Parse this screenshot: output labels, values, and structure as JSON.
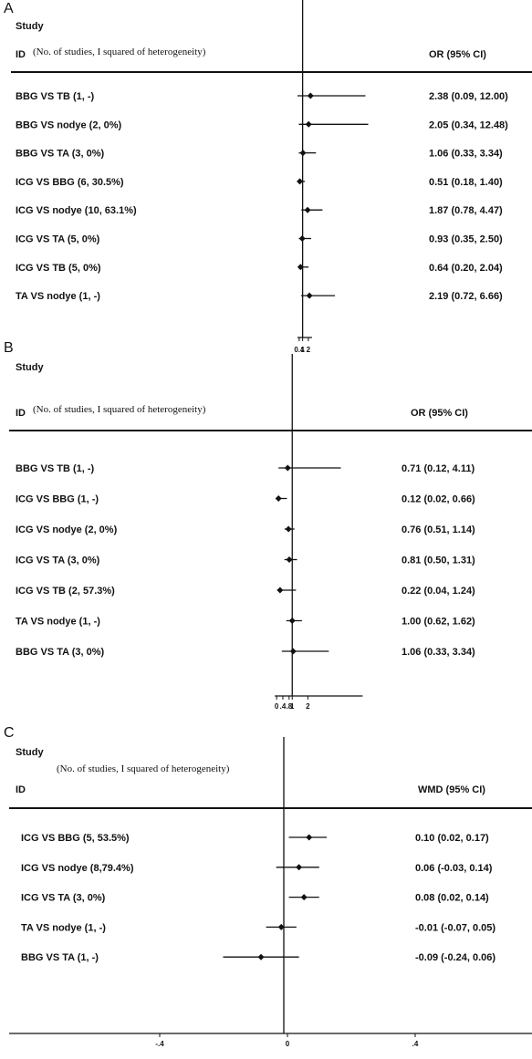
{
  "chart_data": [
    {
      "type": "forest",
      "panel": "A",
      "study_label": "Study",
      "id_label": "ID",
      "subheader": "(No. of studies, I squared  of heterogeneity)",
      "effect_label": "OR (95% CI)",
      "null_value": 1,
      "xlim": [
        -0.7,
        12.4
      ],
      "ticks": [
        0.4,
        1,
        2
      ],
      "tick_labels": [
        "0.4",
        "1",
        "2"
      ],
      "rows": [
        {
          "label": "BBG VS TB (1, -)",
          "est": 2.38,
          "lo": 0.09,
          "hi": 12.0,
          "text": "2.38 (0.09, 12.00)"
        },
        {
          "label": "BBG VS nodye (2, 0%)",
          "est": 2.05,
          "lo": 0.34,
          "hi": 12.48,
          "text": "2.05 (0.34, 12.48)"
        },
        {
          "label": "BBG VS TA (3, 0%)",
          "est": 1.06,
          "lo": 0.33,
          "hi": 3.34,
          "text": "1.06 (0.33, 3.34)"
        },
        {
          "label": "ICG VS BBG (6, 30.5%)",
          "est": 0.51,
          "lo": 0.18,
          "hi": 1.4,
          "text": "0.51 (0.18, 1.40)"
        },
        {
          "label": "ICG VS nodye (10, 63.1%)",
          "est": 1.87,
          "lo": 0.78,
          "hi": 4.47,
          "text": "1.87 (0.78, 4.47)"
        },
        {
          "label": "ICG VS TA (5, 0%)",
          "est": 0.93,
          "lo": 0.35,
          "hi": 2.5,
          "text": "0.93 (0.35, 2.50)"
        },
        {
          "label": "ICG VS TB (5, 0%)",
          "est": 0.64,
          "lo": 0.2,
          "hi": 2.04,
          "text": "0.64 (0.20, 2.04)"
        },
        {
          "label": "TA VS nodye (1, -)",
          "est": 2.19,
          "lo": 0.72,
          "hi": 6.66,
          "text": "2.19 (0.72, 6.66)"
        }
      ]
    },
    {
      "type": "forest",
      "panel": "B",
      "study_label": "Study",
      "id_label": "ID",
      "subheader": "(No. of studies, I squared  of heterogeneity)",
      "effect_label": "OR (95% CI)",
      "null_value": 1,
      "xlim": [
        -0.3,
        4.9
      ],
      "ticks": [
        0,
        0.4,
        0.8,
        1,
        2
      ],
      "tick_labels": [
        "0",
        ".4",
        ".8",
        "1",
        "2"
      ],
      "rows": [
        {
          "label": "BBG VS TB (1, -)",
          "est": 0.71,
          "lo": 0.12,
          "hi": 4.11,
          "text": "0.71 (0.12, 4.11)"
        },
        {
          "label": "ICG VS BBG (1, -)",
          "est": 0.12,
          "lo": 0.02,
          "hi": 0.66,
          "text": "0.12 (0.02, 0.66)"
        },
        {
          "label": "ICG VS nodye (2, 0%)",
          "est": 0.76,
          "lo": 0.51,
          "hi": 1.14,
          "text": "0.76 (0.51, 1.14)"
        },
        {
          "label": "ICG VS TA (3, 0%)",
          "est": 0.81,
          "lo": 0.5,
          "hi": 1.31,
          "text": "0.81 (0.50, 1.31)"
        },
        {
          "label": "ICG VS TB (2, 57.3%)",
          "est": 0.22,
          "lo": 0.04,
          "hi": 1.24,
          "text": "0.22 (0.04, 1.24)"
        },
        {
          "label": "TA VS nodye (1, -)",
          "est": 1.0,
          "lo": 0.62,
          "hi": 1.62,
          "text": "1.00 (0.62, 1.62)"
        },
        {
          "label": "BBG VS TA (3, 0%)",
          "est": 1.06,
          "lo": 0.33,
          "hi": 3.34,
          "text": "1.06 (0.33, 3.34)"
        }
      ]
    },
    {
      "type": "forest",
      "panel": "C",
      "study_label": "Study",
      "id_label": "ID",
      "subheader": "(No. of studies, I squared  of heterogeneity)",
      "effect_label": "WMD (95% CI)",
      "null_value": 0,
      "xlim": [
        -0.35,
        0.35
      ],
      "ticks": [
        -0.4,
        0,
        0.4
      ],
      "tick_labels": [
        "-.4",
        "0",
        ".4"
      ],
      "rows": [
        {
          "label": "ICG VS BBG (5, 53.5%)",
          "est": 0.1,
          "lo": 0.02,
          "hi": 0.17,
          "text": "0.10 (0.02, 0.17)"
        },
        {
          "label": "ICG VS nodye (8,79.4%)",
          "est": 0.06,
          "lo": -0.03,
          "hi": 0.14,
          "text": "0.06 (-0.03, 0.14)"
        },
        {
          "label": "ICG VS TA (3, 0%)",
          "est": 0.08,
          "lo": 0.02,
          "hi": 0.14,
          "text": "0.08 (0.02, 0.14)"
        },
        {
          "label": "TA VS nodye (1, -)",
          "est": -0.01,
          "lo": -0.07,
          "hi": 0.05,
          "text": "-0.01 (-0.07, 0.05)"
        },
        {
          "label": "BBG VS TA (1, -)",
          "est": -0.09,
          "lo": -0.24,
          "hi": 0.06,
          "text": "-0.09 (-0.24, 0.06)"
        }
      ]
    }
  ]
}
